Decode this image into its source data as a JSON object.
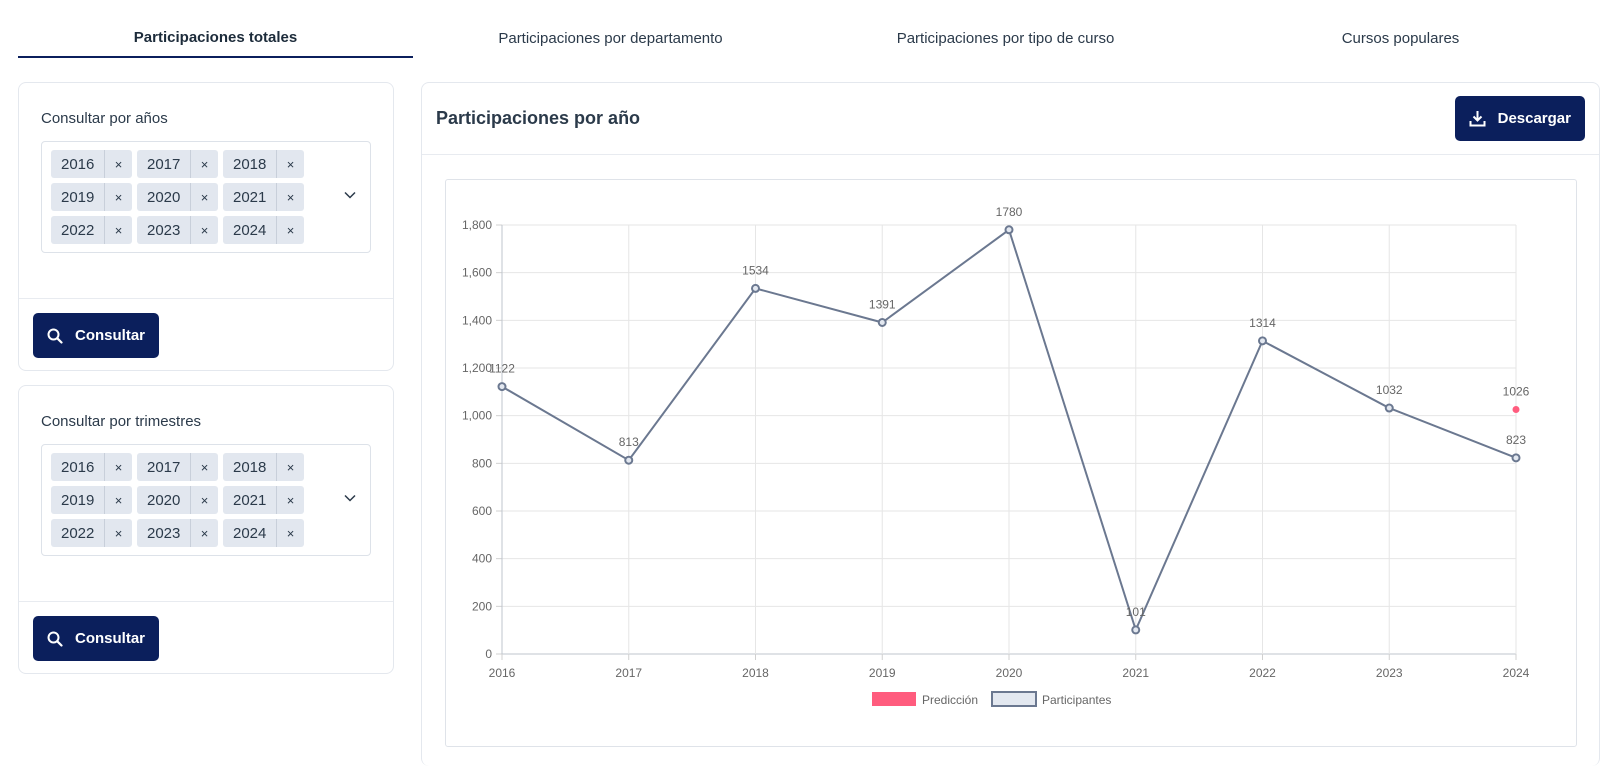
{
  "tabs": [
    {
      "label": "Participaciones totales",
      "active": true
    },
    {
      "label": "Participaciones por departamento",
      "active": false
    },
    {
      "label": "Participaciones por tipo de curso",
      "active": false
    },
    {
      "label": "Cursos populares",
      "active": false
    }
  ],
  "filters": {
    "by_year": {
      "label": "Consultar por años",
      "chips": [
        "2016",
        "2017",
        "2018",
        "2019",
        "2020",
        "2021",
        "2022",
        "2023",
        "2024"
      ],
      "button": "Consultar"
    },
    "by_quarter": {
      "label": "Consultar por trimestres",
      "chips": [
        "2016",
        "2017",
        "2018",
        "2019",
        "2020",
        "2021",
        "2022",
        "2023",
        "2024"
      ],
      "button": "Consultar"
    },
    "remove_glyph": "×"
  },
  "main": {
    "title": "Participaciones por año",
    "download_label": "Descargar"
  },
  "colors": {
    "primary": "#0b1f5c",
    "line": "#6b7890",
    "prediction": "#ff5c7e"
  },
  "chart_data": {
    "type": "line",
    "x": [
      "2016",
      "2017",
      "2018",
      "2019",
      "2020",
      "2021",
      "2022",
      "2023",
      "2024"
    ],
    "series": [
      {
        "name": "Participantes",
        "values": [
          1122,
          813,
          1534,
          1391,
          1780,
          101,
          1314,
          1032,
          823
        ]
      },
      {
        "name": "Predicción",
        "points": [
          {
            "x": "2024",
            "y": 1026
          }
        ]
      }
    ],
    "ylim": [
      0,
      1800
    ],
    "yticks": [
      0,
      200,
      400,
      600,
      800,
      1000,
      1200,
      1400,
      1600,
      1800
    ],
    "ytick_labels": [
      "0",
      "200",
      "400",
      "600",
      "800",
      "1,000",
      "1,200",
      "1,400",
      "1,600",
      "1,800"
    ],
    "grid": true,
    "legend": "bottom-center",
    "legend_entries": [
      "Predicción",
      "Participantes"
    ],
    "data_labels": true
  }
}
